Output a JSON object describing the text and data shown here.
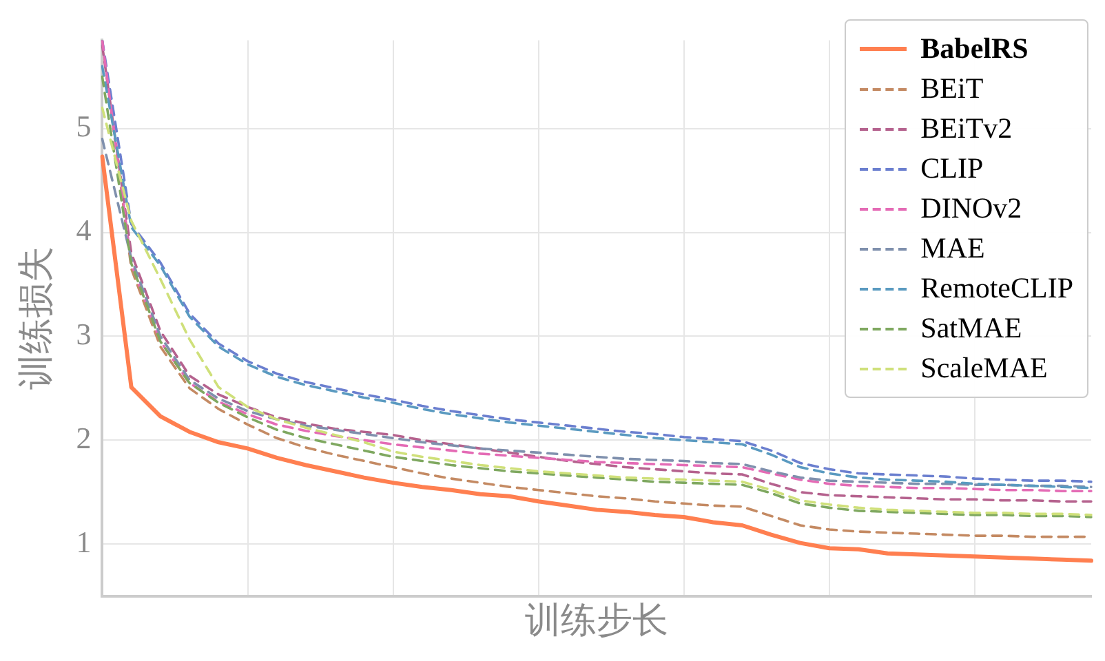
{
  "chart_data": {
    "type": "line",
    "xlabel": "训练步长",
    "ylabel": "训练损失",
    "categories": [
      null,
      null,
      null,
      null,
      null,
      null,
      null,
      null,
      null,
      null,
      null,
      null,
      null,
      null,
      null,
      null,
      null,
      null,
      null,
      null,
      null,
      null,
      null,
      null,
      null,
      null,
      null,
      null,
      null,
      null,
      null,
      null,
      null,
      null,
      null
    ],
    "ylim": [
      0.5,
      5.85
    ],
    "yticks": [
      1,
      2,
      3,
      4,
      5
    ],
    "grid": true,
    "legend": "top right",
    "tick_labels": "y",
    "series": [
      {
        "name": "BabelRS",
        "color": "#ff7f50",
        "line_style": "solid",
        "values": [
          4.73,
          2.51,
          2.23,
          2.08,
          1.98,
          1.92,
          1.83,
          1.76,
          1.7,
          1.64,
          1.59,
          1.55,
          1.52,
          1.48,
          1.46,
          1.41,
          1.37,
          1.33,
          1.31,
          1.28,
          1.26,
          1.21,
          1.18,
          1.09,
          1.01,
          0.96,
          0.95,
          0.91,
          0.9,
          0.89,
          0.88,
          0.87,
          0.86,
          0.85,
          0.84
        ]
      },
      {
        "name": "BEiT",
        "color": "#c48a63",
        "line_style": "dashed",
        "values": [
          5.85,
          3.65,
          2.9,
          2.5,
          2.3,
          2.15,
          2.02,
          1.93,
          1.86,
          1.8,
          1.74,
          1.68,
          1.63,
          1.59,
          1.55,
          1.52,
          1.49,
          1.46,
          1.44,
          1.41,
          1.39,
          1.37,
          1.36,
          1.27,
          1.18,
          1.14,
          1.12,
          1.11,
          1.1,
          1.09,
          1.08,
          1.08,
          1.07,
          1.07,
          1.07
        ]
      },
      {
        "name": "BEiTv2",
        "color": "#b5628e",
        "line_style": "dashed",
        "values": [
          5.8,
          3.8,
          3.05,
          2.62,
          2.44,
          2.32,
          2.22,
          2.16,
          2.11,
          2.08,
          2.05,
          2.0,
          1.96,
          1.92,
          1.88,
          1.84,
          1.8,
          1.77,
          1.74,
          1.72,
          1.7,
          1.68,
          1.67,
          1.58,
          1.5,
          1.47,
          1.46,
          1.45,
          1.44,
          1.43,
          1.43,
          1.42,
          1.42,
          1.41,
          1.41
        ]
      },
      {
        "name": "CLIP",
        "color": "#6b7fcf",
        "line_style": "dashed",
        "values": [
          5.85,
          4.08,
          3.71,
          3.22,
          2.93,
          2.76,
          2.64,
          2.56,
          2.5,
          2.44,
          2.39,
          2.33,
          2.28,
          2.24,
          2.2,
          2.17,
          2.14,
          2.11,
          2.08,
          2.06,
          2.03,
          2.01,
          1.99,
          1.9,
          1.78,
          1.72,
          1.68,
          1.67,
          1.66,
          1.65,
          1.63,
          1.62,
          1.61,
          1.61,
          1.6
        ]
      },
      {
        "name": "DINOv2",
        "color": "#e46bb5",
        "line_style": "dashed",
        "values": [
          5.85,
          3.7,
          2.95,
          2.55,
          2.37,
          2.25,
          2.15,
          2.09,
          2.04,
          2.0,
          1.96,
          1.93,
          1.9,
          1.87,
          1.85,
          1.83,
          1.81,
          1.79,
          1.78,
          1.77,
          1.76,
          1.75,
          1.74,
          1.68,
          1.62,
          1.58,
          1.56,
          1.55,
          1.54,
          1.54,
          1.53,
          1.52,
          1.52,
          1.51,
          1.51
        ]
      },
      {
        "name": "MAE",
        "color": "#7f90ad",
        "line_style": "dashed",
        "values": [
          4.9,
          3.75,
          3.0,
          2.58,
          2.4,
          2.28,
          2.2,
          2.14,
          2.1,
          2.06,
          2.02,
          1.98,
          1.95,
          1.92,
          1.9,
          1.88,
          1.86,
          1.84,
          1.82,
          1.81,
          1.8,
          1.78,
          1.77,
          1.7,
          1.64,
          1.61,
          1.6,
          1.59,
          1.58,
          1.58,
          1.57,
          1.57,
          1.56,
          1.56,
          1.55
        ]
      },
      {
        "name": "RemoteCLIP",
        "color": "#5a9ac0",
        "line_style": "dashed",
        "values": [
          5.6,
          4.05,
          3.68,
          3.19,
          2.9,
          2.73,
          2.61,
          2.53,
          2.47,
          2.41,
          2.36,
          2.3,
          2.25,
          2.21,
          2.17,
          2.14,
          2.11,
          2.08,
          2.05,
          2.02,
          2.0,
          1.98,
          1.96,
          1.86,
          1.74,
          1.68,
          1.64,
          1.62,
          1.61,
          1.6,
          1.58,
          1.57,
          1.56,
          1.55,
          1.54
        ]
      },
      {
        "name": "SatMAE",
        "color": "#7fa860",
        "line_style": "dashed",
        "values": [
          5.5,
          3.7,
          2.95,
          2.55,
          2.36,
          2.22,
          2.1,
          2.02,
          1.96,
          1.9,
          1.84,
          1.8,
          1.76,
          1.73,
          1.7,
          1.68,
          1.66,
          1.64,
          1.62,
          1.6,
          1.59,
          1.58,
          1.57,
          1.49,
          1.39,
          1.35,
          1.32,
          1.31,
          1.3,
          1.29,
          1.28,
          1.28,
          1.27,
          1.27,
          1.26
        ]
      },
      {
        "name": "ScaleMAE",
        "color": "#cfe07a",
        "line_style": "dashed",
        "values": [
          5.2,
          4.11,
          3.55,
          2.97,
          2.51,
          2.32,
          2.2,
          2.12,
          2.05,
          1.98,
          1.89,
          1.84,
          1.8,
          1.76,
          1.73,
          1.7,
          1.68,
          1.66,
          1.64,
          1.63,
          1.62,
          1.61,
          1.6,
          1.52,
          1.42,
          1.38,
          1.35,
          1.33,
          1.32,
          1.31,
          1.3,
          1.3,
          1.29,
          1.29,
          1.28
        ]
      }
    ]
  }
}
